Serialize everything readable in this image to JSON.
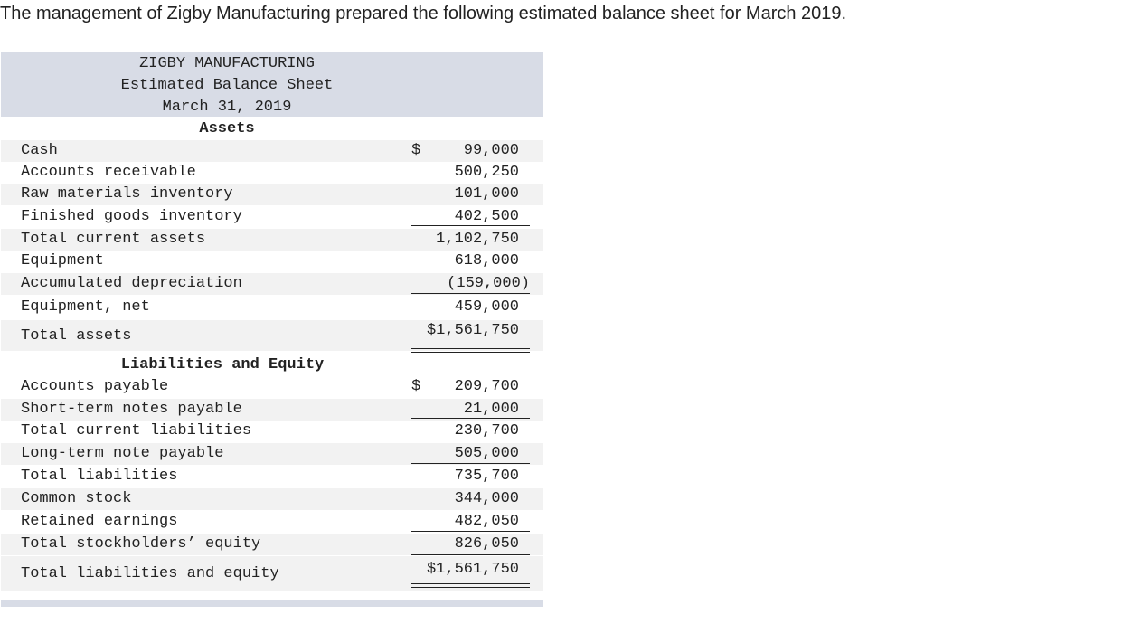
{
  "intro_text": "The management of Zigby Manufacturing prepared the following estimated balance sheet for March 2019.",
  "sheet": {
    "company": "ZIGBY MANUFACTURING",
    "title": "Estimated Balance Sheet",
    "date": "March 31, 2019",
    "assets_heading": "Assets",
    "liabilities_heading": "Liabilities and Equity",
    "assets": [
      {
        "label": "Cash",
        "dollar": "$",
        "amount": "99,000"
      },
      {
        "label": "Accounts receivable",
        "dollar": "",
        "amount": "500,250"
      },
      {
        "label": "Raw materials inventory",
        "dollar": "",
        "amount": "101,000"
      },
      {
        "label": "Finished goods inventory",
        "dollar": "",
        "amount": "402,500"
      },
      {
        "label": "Total current assets",
        "dollar": "",
        "amount": "1,102,750"
      },
      {
        "label": "Equipment",
        "dollar": "",
        "amount": "618,000"
      },
      {
        "label": "Accumulated depreciation",
        "dollar": "",
        "amount": "(159,000)"
      },
      {
        "label": "Equipment, net",
        "dollar": "",
        "amount": "459,000"
      },
      {
        "label": "Total assets",
        "dollar": "",
        "amount": "$1,561,750"
      }
    ],
    "liabilities": [
      {
        "label": "Accounts payable",
        "dollar": "$",
        "amount": "209,700"
      },
      {
        "label": "Short-term notes payable",
        "dollar": "",
        "amount": "21,000"
      },
      {
        "label": "Total current liabilities",
        "dollar": "",
        "amount": "230,700"
      },
      {
        "label": "Long-term note payable",
        "dollar": "",
        "amount": "505,000"
      },
      {
        "label": "Total liabilities",
        "dollar": "",
        "amount": "735,700"
      },
      {
        "label": "Common stock",
        "dollar": "",
        "amount": "344,000"
      },
      {
        "label": "Retained earnings",
        "dollar": "",
        "amount": "482,050"
      },
      {
        "label": "Total stockholders’ equity",
        "dollar": "",
        "amount": "826,050"
      },
      {
        "label": "Total liabilities and equity",
        "dollar": "",
        "amount": "$1,561,750"
      }
    ]
  },
  "colors": {
    "header_band": "#d8dce6",
    "row_shade": "#f2f2f2",
    "text": "#222222"
  }
}
